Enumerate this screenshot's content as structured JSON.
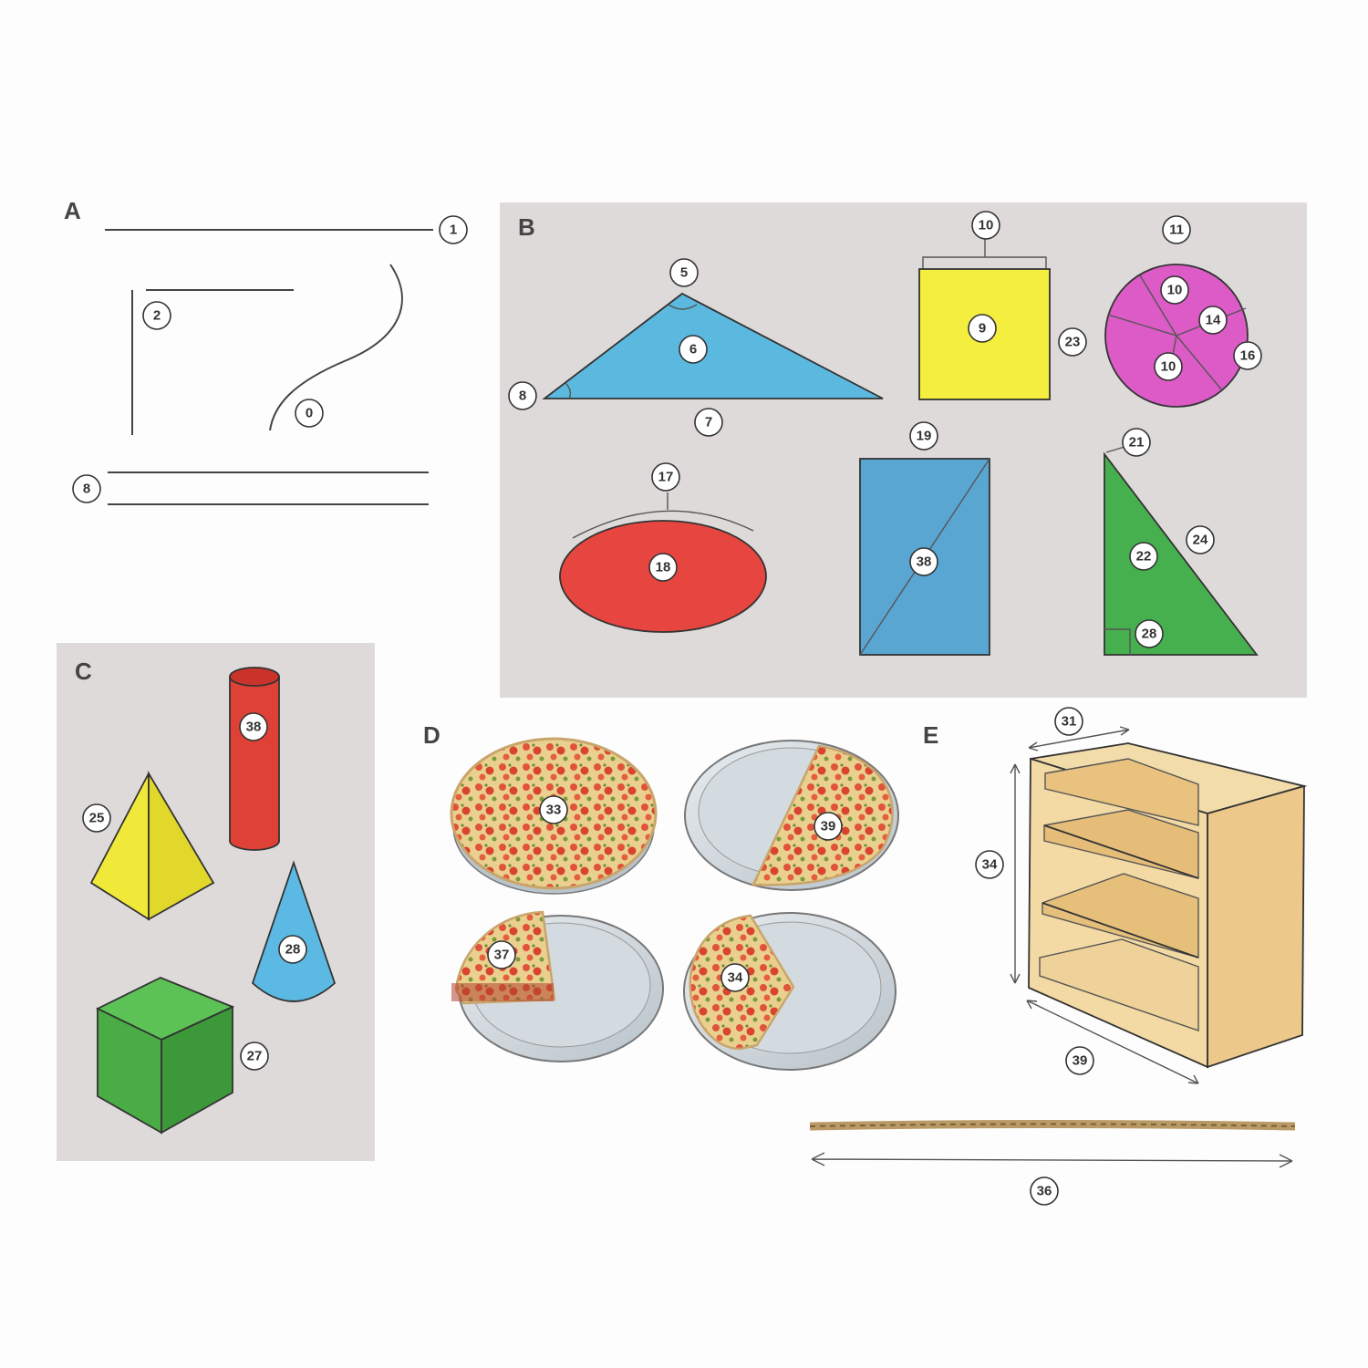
{
  "sections": {
    "A": {
      "letter": "A",
      "labels": {
        "line": "1",
        "angle": "2",
        "curve": "0",
        "parallel": "8"
      }
    },
    "B": {
      "letter": "B",
      "labels": {
        "tri_top": "5",
        "tri_center": "6",
        "tri_left": "8",
        "tri_bottom": "7",
        "sq_top": "10",
        "sq_center": "9",
        "sq_side": "23",
        "circ_top": "11",
        "circ_a": "10",
        "circ_b": "14",
        "circ_c": "10",
        "circ_d": "16",
        "ell_top": "17",
        "ell_center": "18",
        "rect_top": "19",
        "rect_center": "38",
        "rt_top": "21",
        "rt_hyp": "24",
        "rt_center": "22",
        "rt_corner": "28"
      }
    },
    "C": {
      "letter": "C",
      "labels": {
        "cylinder": "38",
        "pyramid": "25",
        "cone": "28",
        "cube": "27"
      }
    },
    "D": {
      "letter": "D",
      "labels": {
        "whole": "33",
        "half": "39",
        "quarter": "37",
        "three_quarter": "34"
      }
    },
    "E": {
      "letter": "E",
      "labels": {
        "depth": "31",
        "height": "34",
        "width": "39",
        "rope": "36"
      }
    }
  },
  "colors": {
    "panel": "#dedad9",
    "triangle": "#5bb8df",
    "square": "#f4ee3e",
    "circle": "#dc5bc6",
    "ellipse": "#e6463f",
    "rectangle": "#5aa6d2",
    "right_triangle": "#47b04e",
    "pyramid": "#f1e93a",
    "cylinder": "#df4136",
    "cone": "#5bb9e4",
    "cube": "#49ac44",
    "pizza_crust": "#e7c98c",
    "pizza_sauce": "#e0533a",
    "pan": "#cfd6dc",
    "shelf": "#f3d9a3",
    "rope": "#b99a66"
  }
}
